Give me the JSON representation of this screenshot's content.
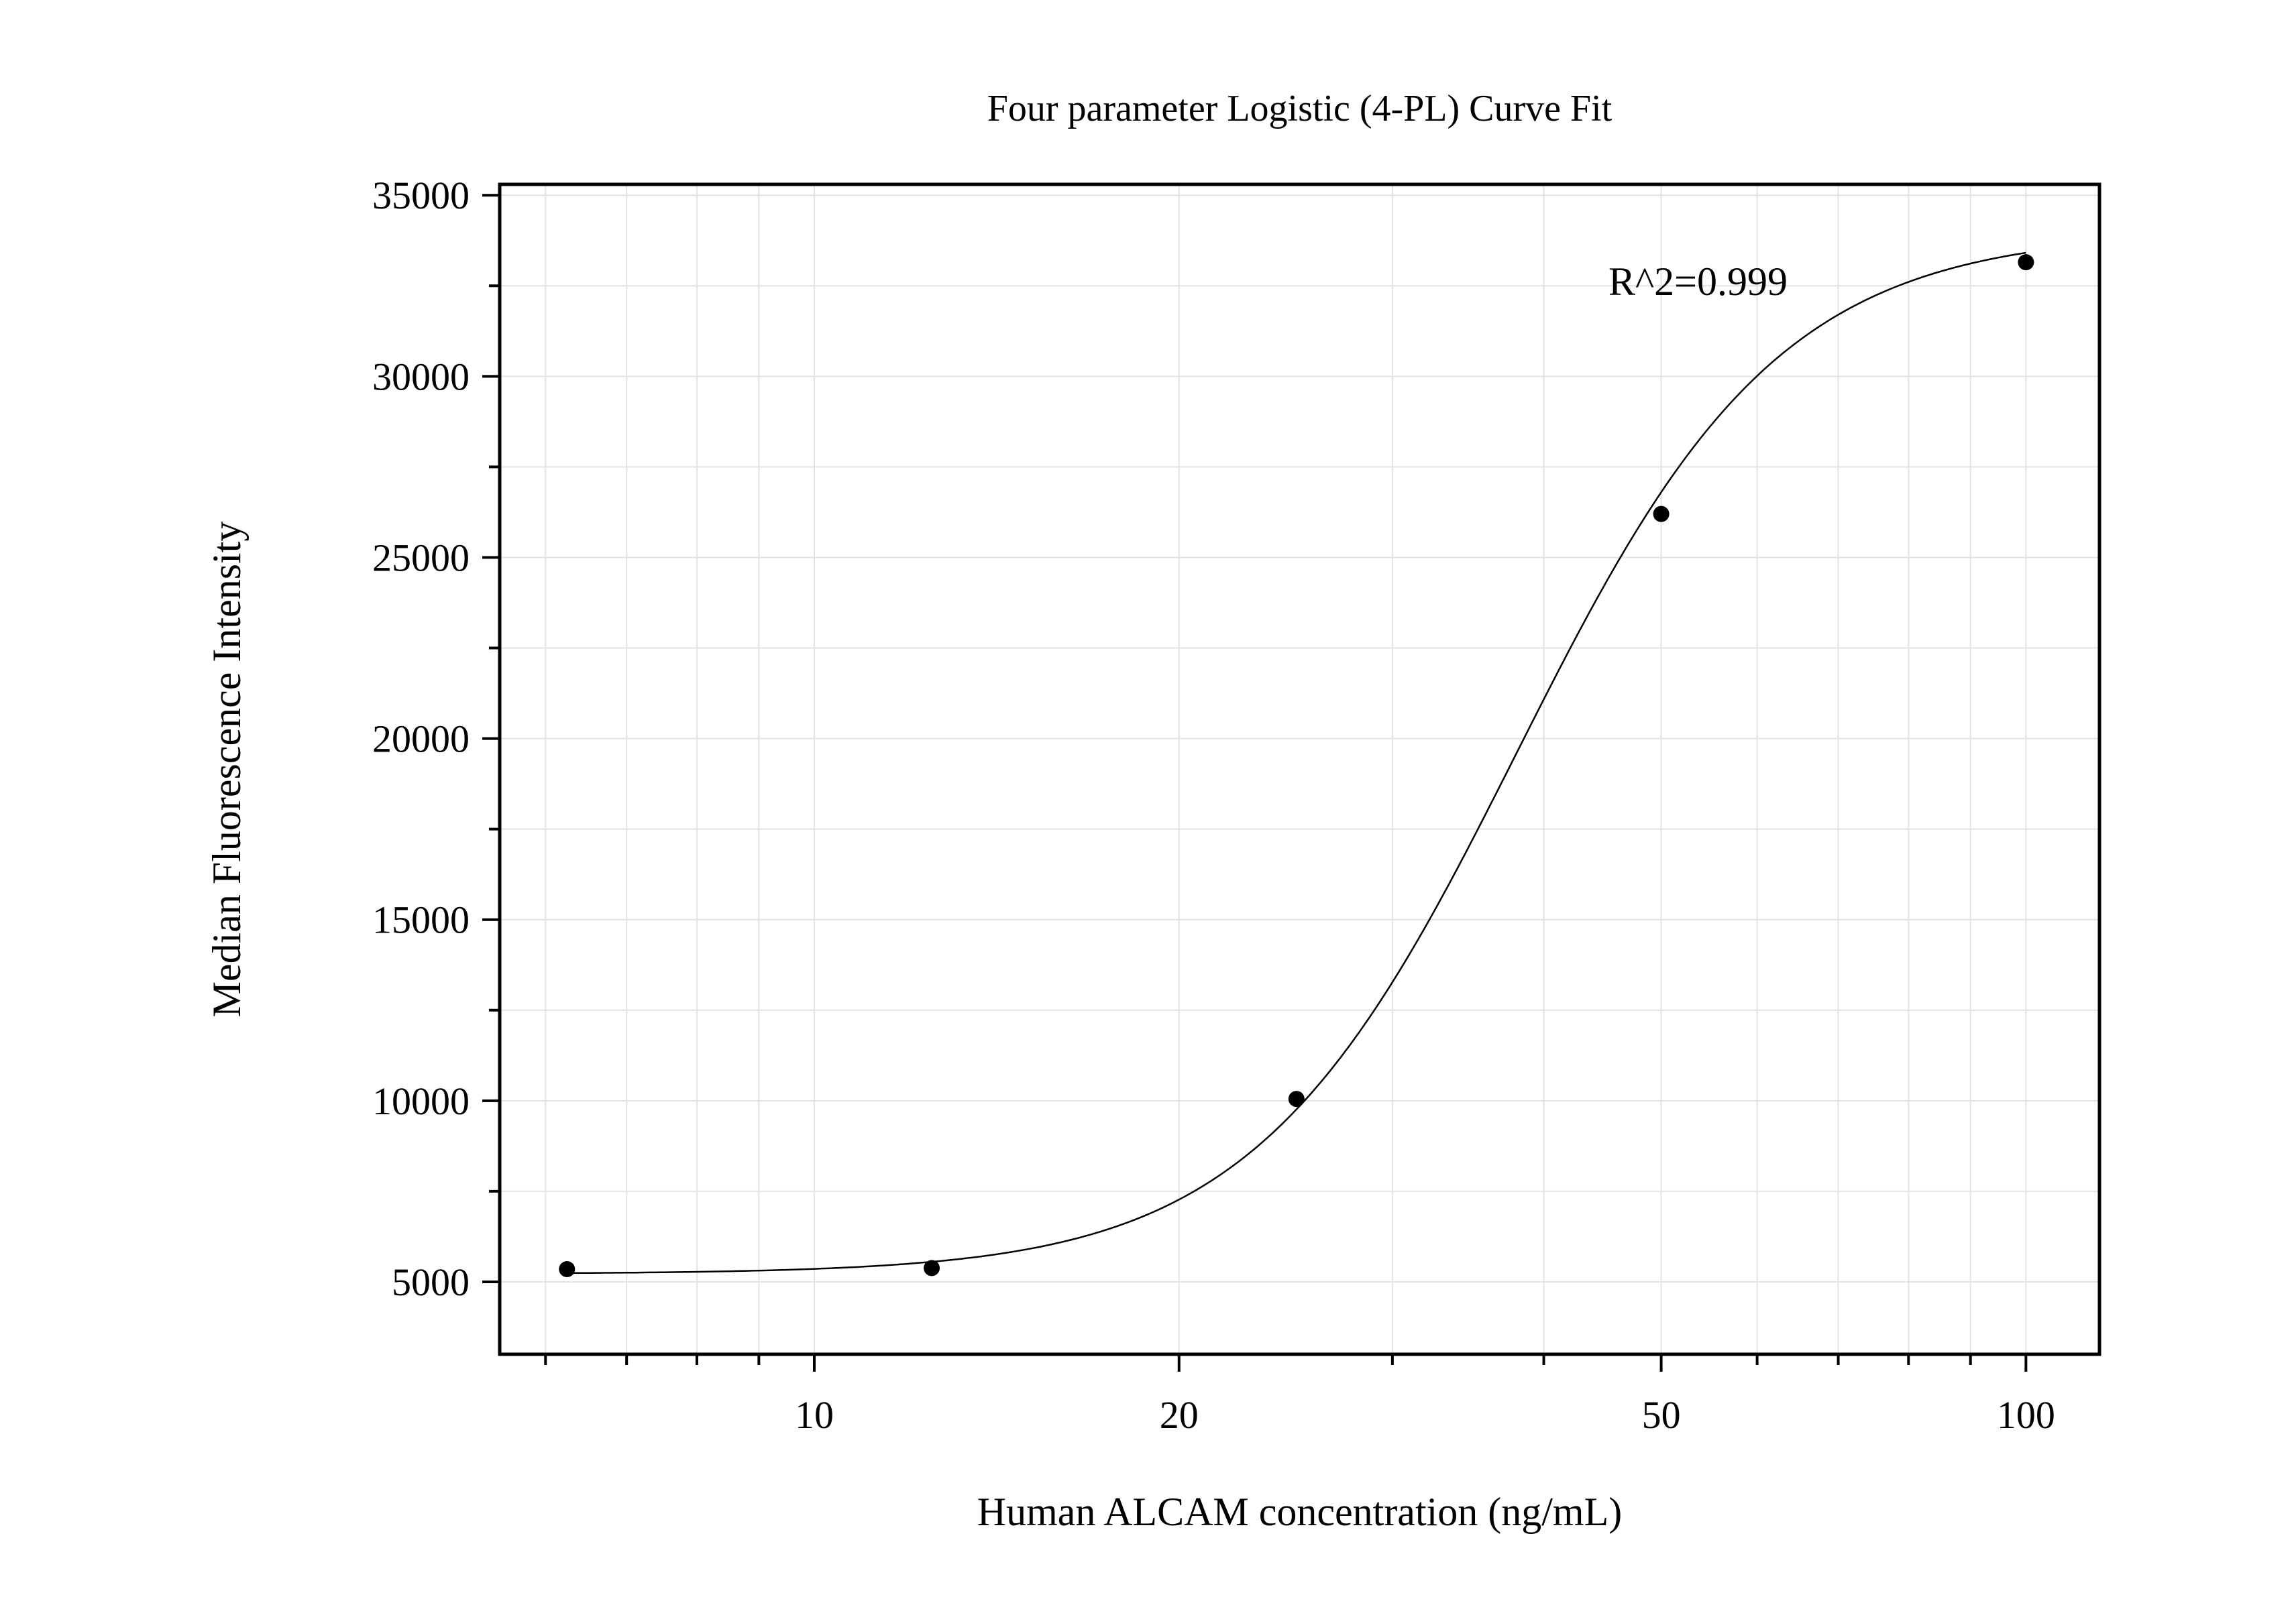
{
  "chart_data": {
    "type": "scatter",
    "title": "Four parameter Logistic (4-PL) Curve Fit",
    "xlabel": "Human ALCAM concentration (ng/mL)",
    "ylabel": "Median Fluorescence Intensity",
    "x_scale": "log",
    "xlim": [
      5.5,
      115
    ],
    "ylim": [
      3000,
      35300
    ],
    "x_ticks": [
      10,
      20,
      50,
      100
    ],
    "x_tick_labels": [
      "10",
      "20",
      "50",
      "100"
    ],
    "y_ticks": [
      5000,
      10000,
      15000,
      20000,
      25000,
      30000,
      35000
    ],
    "y_tick_labels": [
      "5000",
      "10000",
      "15000",
      "20000",
      "25000",
      "30000",
      "35000"
    ],
    "grid": true,
    "points": [
      {
        "x": 6.25,
        "y": 5350
      },
      {
        "x": 12.5,
        "y": 5380
      },
      {
        "x": 25,
        "y": 10050
      },
      {
        "x": 50,
        "y": 26200
      },
      {
        "x": 100,
        "y": 33150
      }
    ],
    "fit": {
      "model": "4PL",
      "bottom": 5220,
      "top": 34000,
      "ec50": 38,
      "hill": 4.0
    },
    "annotation": "R^2=0.999"
  }
}
